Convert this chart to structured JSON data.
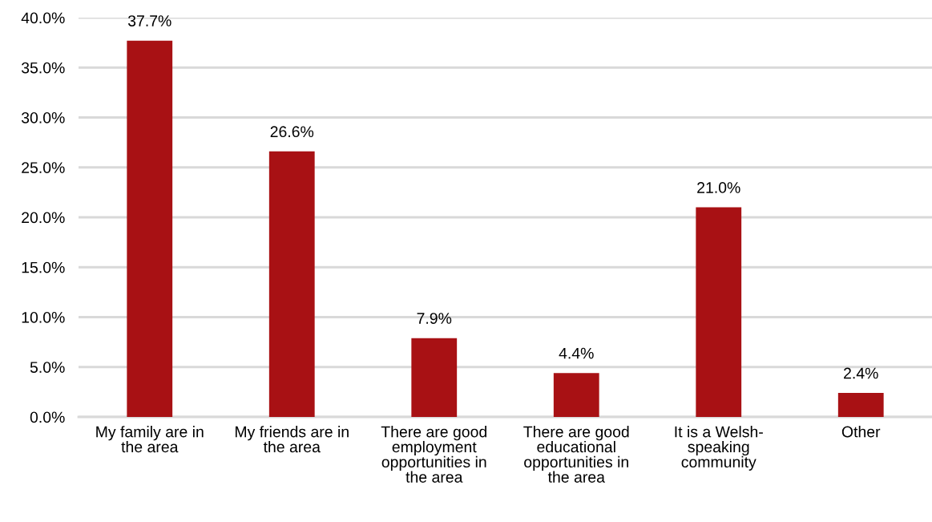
{
  "chart_data": {
    "type": "bar",
    "categories": [
      "My family are in\nthe area",
      "My friends are in\nthe area",
      "There are good\nemployment\nopportunities in\nthe area",
      "There are good\neducational\nopportunities in\nthe area",
      "It is a Welsh-\nspeaking\ncommunity",
      "Other"
    ],
    "values": [
      37.7,
      26.6,
      7.9,
      4.4,
      21.0,
      2.4
    ],
    "color": "#a81114",
    "value_labels": [
      "37.7%",
      "26.6%",
      "7.9%",
      "4.4%",
      "21.0%",
      "2.4%"
    ],
    "ylim": [
      0,
      40
    ],
    "yticks": [
      {
        "value": 0,
        "label": "0.0%"
      },
      {
        "value": 5,
        "label": "5.0%"
      },
      {
        "value": 10,
        "label": "10.0%"
      },
      {
        "value": 15,
        "label": "15.0%"
      },
      {
        "value": 20,
        "label": "20.0%"
      },
      {
        "value": 25,
        "label": "25.0%"
      },
      {
        "value": 30,
        "label": "30.0%"
      },
      {
        "value": 35,
        "label": "35.0%"
      },
      {
        "value": 40,
        "label": "40.0%"
      }
    ],
    "grid": "y"
  }
}
